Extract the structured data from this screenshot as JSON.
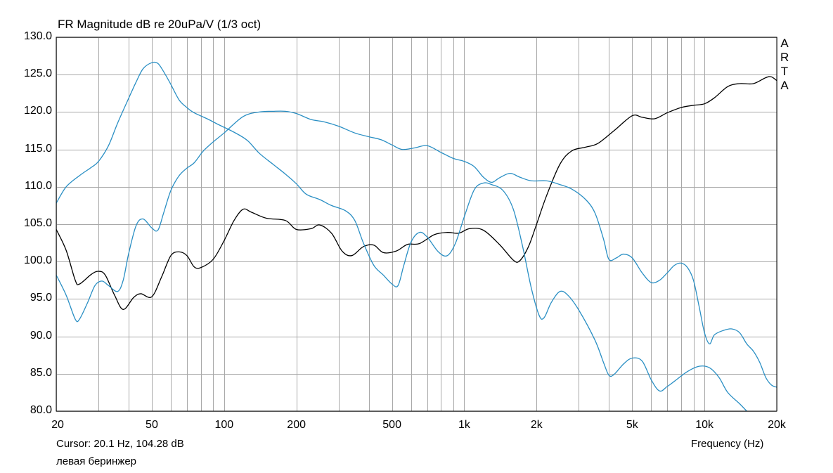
{
  "chart_data": {
    "type": "line",
    "title": "FR Magnitude dB re 20uPa/V (1/3 oct)",
    "xlabel": "Frequency (Hz)",
    "ylabel": "",
    "x_scale": "log",
    "xlim": [
      20,
      20000
    ],
    "ylim": [
      80,
      130
    ],
    "grid": true,
    "y_ticks": [
      "130.0",
      "125.0",
      "120.0",
      "115.0",
      "110.0",
      "105.0",
      "100.0",
      "95.0",
      "90.0",
      "85.0",
      "80.0"
    ],
    "x_ticks": [
      {
        "value": 20,
        "label": "20"
      },
      {
        "value": 50,
        "label": "50"
      },
      {
        "value": 100,
        "label": "100"
      },
      {
        "value": 200,
        "label": "200"
      },
      {
        "value": 500,
        "label": "500"
      },
      {
        "value": 1000,
        "label": "1k"
      },
      {
        "value": 2000,
        "label": "2k"
      },
      {
        "value": 5000,
        "label": "5k"
      },
      {
        "value": 10000,
        "label": "10k"
      },
      {
        "value": 20000,
        "label": "20k"
      }
    ],
    "series": [
      {
        "color": "#000000",
        "points": [
          [
            20,
            104.3
          ],
          [
            22,
            101.5
          ],
          [
            24,
            97.5
          ],
          [
            25,
            97
          ],
          [
            28,
            98.3
          ],
          [
            30,
            98.7
          ],
          [
            32,
            98.2
          ],
          [
            35,
            95.5
          ],
          [
            38,
            93.6
          ],
          [
            42,
            95.2
          ],
          [
            45,
            95.7
          ],
          [
            50,
            95.3
          ],
          [
            55,
            98
          ],
          [
            60,
            100.8
          ],
          [
            65,
            101.3
          ],
          [
            70,
            100.8
          ],
          [
            75,
            99.3
          ],
          [
            80,
            99.2
          ],
          [
            90,
            100.3
          ],
          [
            100,
            102.8
          ],
          [
            110,
            105.5
          ],
          [
            120,
            107
          ],
          [
            130,
            106.6
          ],
          [
            150,
            105.8
          ],
          [
            180,
            105.5
          ],
          [
            200,
            104.3
          ],
          [
            230,
            104.4
          ],
          [
            250,
            104.9
          ],
          [
            280,
            103.8
          ],
          [
            310,
            101.4
          ],
          [
            340,
            100.8
          ],
          [
            380,
            102
          ],
          [
            420,
            102.2
          ],
          [
            460,
            101.2
          ],
          [
            520,
            101.4
          ],
          [
            580,
            102.3
          ],
          [
            650,
            102.4
          ],
          [
            750,
            103.6
          ],
          [
            850,
            103.9
          ],
          [
            950,
            103.8
          ],
          [
            1050,
            104.4
          ],
          [
            1200,
            104.2
          ],
          [
            1400,
            102.3
          ],
          [
            1600,
            100.2
          ],
          [
            1700,
            100.1
          ],
          [
            1850,
            102
          ],
          [
            2000,
            105
          ],
          [
            2200,
            108.8
          ],
          [
            2500,
            113
          ],
          [
            2800,
            114.8
          ],
          [
            3200,
            115.3
          ],
          [
            3600,
            115.8
          ],
          [
            4200,
            117.5
          ],
          [
            5000,
            119.5
          ],
          [
            5500,
            119.3
          ],
          [
            6200,
            119.1
          ],
          [
            7000,
            119.9
          ],
          [
            8000,
            120.6
          ],
          [
            9000,
            120.9
          ],
          [
            10000,
            121.1
          ],
          [
            11000,
            121.9
          ],
          [
            12500,
            123.4
          ],
          [
            14000,
            123.8
          ],
          [
            16000,
            123.8
          ],
          [
            18000,
            124.6
          ],
          [
            19000,
            124.7
          ],
          [
            20000,
            124.2
          ]
        ]
      },
      {
        "color": "#2a8fc4",
        "points": [
          [
            20,
            107.8
          ],
          [
            22,
            110
          ],
          [
            25,
            111.5
          ],
          [
            28,
            112.6
          ],
          [
            30,
            113.4
          ],
          [
            33,
            115.5
          ],
          [
            36,
            118.5
          ],
          [
            40,
            121.8
          ],
          [
            43,
            124
          ],
          [
            46,
            125.8
          ],
          [
            50,
            126.6
          ],
          [
            53,
            126.5
          ],
          [
            56,
            125.4
          ],
          [
            60,
            123.7
          ],
          [
            65,
            121.6
          ],
          [
            70,
            120.6
          ],
          [
            75,
            119.9
          ],
          [
            85,
            119.1
          ],
          [
            95,
            118.3
          ],
          [
            110,
            117.3
          ],
          [
            125,
            116.2
          ],
          [
            140,
            114.5
          ],
          [
            160,
            113
          ],
          [
            180,
            111.7
          ],
          [
            200,
            110.4
          ],
          [
            220,
            109
          ],
          [
            250,
            108.3
          ],
          [
            280,
            107.5
          ],
          [
            320,
            106.8
          ],
          [
            350,
            105.5
          ],
          [
            380,
            102.5
          ],
          [
            420,
            99.5
          ],
          [
            460,
            98.2
          ],
          [
            500,
            97
          ],
          [
            530,
            96.8
          ],
          [
            560,
            99.5
          ],
          [
            600,
            102.6
          ],
          [
            650,
            103.9
          ],
          [
            700,
            103.3
          ],
          [
            780,
            101.3
          ],
          [
            850,
            100.8
          ],
          [
            920,
            102.5
          ],
          [
            1000,
            106
          ],
          [
            1100,
            109.6
          ],
          [
            1200,
            110.5
          ],
          [
            1300,
            110.3
          ],
          [
            1450,
            109.5
          ],
          [
            1600,
            107
          ],
          [
            1750,
            102
          ],
          [
            1900,
            96.5
          ],
          [
            2050,
            92.8
          ],
          [
            2150,
            92.5
          ],
          [
            2300,
            94.5
          ],
          [
            2500,
            96
          ],
          [
            2700,
            95.5
          ],
          [
            3000,
            93.5
          ],
          [
            3500,
            89.5
          ],
          [
            3800,
            86.5
          ],
          [
            4000,
            84.8
          ],
          [
            4200,
            84.9
          ],
          [
            4600,
            86.3
          ],
          [
            5000,
            87.1
          ],
          [
            5500,
            86.7
          ],
          [
            6000,
            84.2
          ],
          [
            6500,
            82.7
          ],
          [
            7000,
            83.3
          ],
          [
            7500,
            84
          ],
          [
            8500,
            85.3
          ],
          [
            9500,
            86
          ],
          [
            10500,
            85.8
          ],
          [
            11500,
            84.5
          ],
          [
            12500,
            82.5
          ],
          [
            14000,
            81
          ],
          [
            15000,
            80
          ]
        ]
      },
      {
        "color": "#2a8fc4",
        "points": [
          [
            20,
            98.2
          ],
          [
            22,
            95.5
          ],
          [
            24,
            92.3
          ],
          [
            25,
            92.3
          ],
          [
            27,
            94.5
          ],
          [
            29,
            96.8
          ],
          [
            31,
            97.4
          ],
          [
            33,
            96.8
          ],
          [
            36,
            96
          ],
          [
            38,
            97.5
          ],
          [
            40,
            101
          ],
          [
            43,
            104.8
          ],
          [
            46,
            105.7
          ],
          [
            50,
            104.5
          ],
          [
            53,
            104.2
          ],
          [
            56,
            106.5
          ],
          [
            60,
            109.5
          ],
          [
            65,
            111.5
          ],
          [
            70,
            112.5
          ],
          [
            75,
            113.2
          ],
          [
            82,
            114.8
          ],
          [
            90,
            116
          ],
          [
            100,
            117.2
          ],
          [
            120,
            119.4
          ],
          [
            140,
            120
          ],
          [
            160,
            120.1
          ],
          [
            180,
            120.1
          ],
          [
            200,
            119.8
          ],
          [
            230,
            119
          ],
          [
            260,
            118.7
          ],
          [
            300,
            118.1
          ],
          [
            350,
            117.2
          ],
          [
            400,
            116.7
          ],
          [
            450,
            116.3
          ],
          [
            500,
            115.6
          ],
          [
            550,
            115
          ],
          [
            620,
            115.2
          ],
          [
            700,
            115.5
          ],
          [
            800,
            114.6
          ],
          [
            900,
            113.8
          ],
          [
            1000,
            113.4
          ],
          [
            1100,
            112.7
          ],
          [
            1200,
            111.3
          ],
          [
            1300,
            110.6
          ],
          [
            1400,
            111.2
          ],
          [
            1550,
            111.8
          ],
          [
            1700,
            111.3
          ],
          [
            1900,
            110.8
          ],
          [
            2200,
            110.8
          ],
          [
            2500,
            110.3
          ],
          [
            2800,
            109.7
          ],
          [
            3200,
            108.3
          ],
          [
            3500,
            106.5
          ],
          [
            3800,
            103
          ],
          [
            4000,
            100.3
          ],
          [
            4300,
            100.5
          ],
          [
            4600,
            101
          ],
          [
            5000,
            100.5
          ],
          [
            5500,
            98.5
          ],
          [
            6000,
            97.2
          ],
          [
            6500,
            97.5
          ],
          [
            7000,
            98.5
          ],
          [
            7500,
            99.5
          ],
          [
            8000,
            99.8
          ],
          [
            8500,
            99.2
          ],
          [
            9000,
            97.5
          ],
          [
            9500,
            94
          ],
          [
            10000,
            90.5
          ],
          [
            10500,
            89
          ],
          [
            11000,
            90.2
          ],
          [
            12000,
            90.8
          ],
          [
            13000,
            91
          ],
          [
            14000,
            90.5
          ],
          [
            15000,
            89
          ],
          [
            16000,
            88
          ],
          [
            17000,
            86.5
          ],
          [
            18000,
            84.5
          ],
          [
            19000,
            83.5
          ],
          [
            20000,
            83.2
          ]
        ]
      }
    ]
  },
  "labels": {
    "arta": [
      "A",
      "R",
      "T",
      "A"
    ],
    "cursor": "Cursor: 20.1 Hz, 104.28 dB",
    "device": "левая беринжер"
  }
}
